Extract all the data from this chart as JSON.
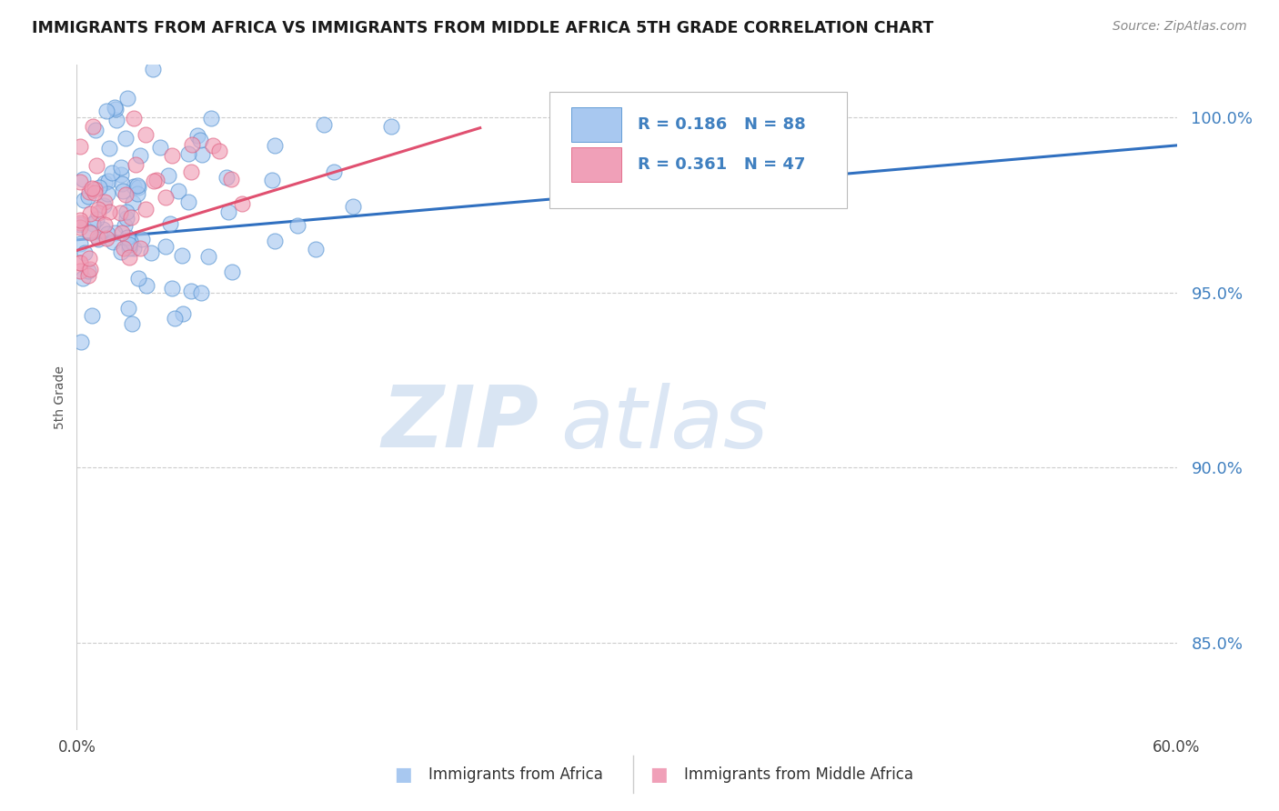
{
  "title": "IMMIGRANTS FROM AFRICA VS IMMIGRANTS FROM MIDDLE AFRICA 5TH GRADE CORRELATION CHART",
  "source": "Source: ZipAtlas.com",
  "ylabel": "5th Grade",
  "y_ticks": [
    0.85,
    0.9,
    0.95,
    1.0
  ],
  "y_tick_labels": [
    "85.0%",
    "90.0%",
    "95.0%",
    "100.0%"
  ],
  "xlim": [
    0.0,
    0.6
  ],
  "ylim": [
    0.825,
    1.015
  ],
  "legend1_label": "Immigrants from Africa",
  "legend2_label": "Immigrants from Middle Africa",
  "R1": 0.186,
  "N1": 88,
  "R2": 0.361,
  "N2": 47,
  "blue_fill": "#A8C8F0",
  "pink_fill": "#F0A0B8",
  "blue_edge": "#5090D0",
  "pink_edge": "#E06080",
  "blue_line": "#3070C0",
  "pink_line": "#E05070",
  "text_blue": "#4080C0",
  "watermark_color": "#D0E0F5",
  "background_color": "#FFFFFF",
  "grid_color": "#CCCCCC",
  "blue_line_x": [
    0.0,
    0.6
  ],
  "blue_line_y": [
    0.965,
    0.992
  ],
  "pink_line_x": [
    0.0,
    0.22
  ],
  "pink_line_y": [
    0.962,
    0.997
  ]
}
